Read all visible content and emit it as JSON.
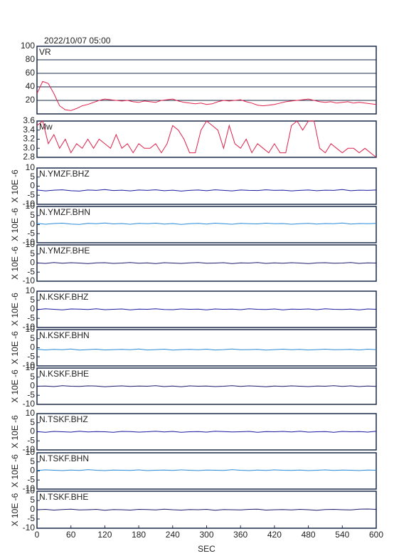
{
  "chart_data": [
    {
      "type": "line",
      "title": "2022/10/07 05:00",
      "label": "VR",
      "color": "#e0204a",
      "grid": true,
      "xlim": [
        0,
        600
      ],
      "ylim": [
        0,
        100
      ],
      "yticks": [
        20,
        40,
        60,
        80,
        100
      ],
      "x": [
        0,
        10,
        20,
        30,
        40,
        50,
        60,
        70,
        80,
        90,
        100,
        110,
        120,
        130,
        140,
        150,
        160,
        170,
        180,
        190,
        200,
        210,
        220,
        230,
        240,
        250,
        260,
        270,
        280,
        290,
        300,
        310,
        320,
        330,
        340,
        350,
        360,
        370,
        380,
        390,
        400,
        410,
        420,
        430,
        440,
        450,
        460,
        470,
        480,
        490,
        500,
        510,
        520,
        530,
        540,
        550,
        560,
        570,
        580,
        590,
        600
      ],
      "values": [
        30,
        48,
        45,
        30,
        12,
        6,
        5,
        8,
        12,
        14,
        17,
        20,
        22,
        21,
        20,
        19,
        20,
        18,
        17,
        19,
        18,
        17,
        20,
        21,
        22,
        19,
        17,
        16,
        15,
        16,
        14,
        15,
        18,
        20,
        19,
        20,
        21,
        18,
        16,
        13,
        12,
        13,
        14,
        16,
        18,
        19,
        20,
        21,
        22,
        20,
        18,
        17,
        18,
        16,
        17,
        18,
        16,
        17,
        16,
        15,
        14
      ]
    },
    {
      "type": "line",
      "label": "Mw",
      "color": "#e0204a",
      "grid": false,
      "xlim": [
        0,
        600
      ],
      "ylim": [
        2.8,
        3.6
      ],
      "yticks": [
        2.8,
        {
          "value": 3,
          "label": "3.0"
        },
        3.2,
        3.4,
        3.6
      ],
      "x": [
        0,
        10,
        20,
        30,
        40,
        50,
        60,
        70,
        80,
        90,
        100,
        110,
        120,
        130,
        140,
        150,
        160,
        170,
        180,
        190,
        200,
        210,
        220,
        230,
        240,
        250,
        260,
        270,
        280,
        290,
        300,
        310,
        320,
        330,
        340,
        350,
        360,
        370,
        380,
        390,
        400,
        410,
        420,
        430,
        440,
        450,
        460,
        470,
        480,
        490,
        500,
        510,
        520,
        530,
        540,
        550,
        560,
        570,
        580,
        590,
        600
      ],
      "values": [
        3.5,
        3.6,
        3.1,
        3.3,
        3.0,
        3.2,
        2.9,
        3.1,
        3.0,
        3.2,
        3.0,
        3.2,
        3.1,
        3.0,
        3.3,
        3.0,
        3.1,
        2.9,
        3.1,
        3.0,
        3.0,
        3.1,
        2.9,
        3.1,
        3.5,
        3.4,
        3.2,
        2.9,
        2.9,
        3.4,
        3.6,
        3.5,
        3.4,
        3.0,
        3.5,
        3.1,
        3.0,
        3.2,
        2.9,
        3.1,
        3.0,
        2.9,
        3.1,
        2.9,
        2.9,
        3.5,
        3.6,
        3.4,
        3.6,
        3.6,
        3.0,
        2.9,
        3.1,
        3.0,
        2.9,
        3.0,
        3.0,
        2.9,
        3.0,
        2.9,
        2.8
      ]
    },
    {
      "type": "line",
      "label": "N.YMZF.BHZ",
      "ylabel": "X 10E -6",
      "color": "#1a1aa0",
      "xlim": [
        0,
        600
      ],
      "ylim": [
        -10,
        10
      ],
      "yticks": [
        -10,
        -5,
        0,
        5,
        10
      ],
      "x": [
        0,
        15,
        30,
        45,
        60,
        75,
        90,
        105,
        120,
        135,
        150,
        165,
        180,
        195,
        210,
        225,
        240,
        255,
        270,
        285,
        300,
        315,
        330,
        345,
        360,
        375,
        390,
        405,
        420,
        435,
        450,
        465,
        480,
        495,
        510,
        525,
        540,
        555,
        570,
        585,
        600
      ],
      "values": [
        -2.1,
        -2.6,
        -2.2,
        -2.0,
        -2.5,
        -2.7,
        -2.1,
        -2.3,
        -1.9,
        -2.4,
        -2.2,
        -2.6,
        -2.1,
        -2.3,
        -2.0,
        -2.5,
        -2.2,
        -2.7,
        -2.3,
        -2.1,
        -2.5,
        -2.0,
        -2.3,
        -2.6,
        -2.1,
        -2.3,
        -2.4,
        -2.0,
        -2.3,
        -2.2,
        -2.6,
        -2.3,
        -2.1,
        -2.5,
        -2.2,
        -2.3,
        -1.9,
        -2.5,
        -2.2,
        -2.3,
        -2.1
      ]
    },
    {
      "type": "line",
      "label": "N.YMZF.BHN",
      "ylabel": "X 10E -6",
      "color": "#2a8ad8",
      "xlim": [
        0,
        600
      ],
      "ylim": [
        -10,
        10
      ],
      "yticks": [
        -10,
        -5,
        0,
        5,
        10
      ],
      "x": [
        0,
        15,
        30,
        45,
        60,
        75,
        90,
        105,
        120,
        135,
        150,
        165,
        180,
        195,
        210,
        225,
        240,
        255,
        270,
        285,
        300,
        315,
        330,
        345,
        360,
        375,
        390,
        405,
        420,
        435,
        450,
        465,
        480,
        495,
        510,
        525,
        540,
        555,
        570,
        585,
        600
      ],
      "values": [
        0.7,
        0.2,
        0.6,
        0.8,
        0.3,
        0.1,
        0.7,
        0.5,
        0.9,
        0.4,
        0.6,
        0.2,
        0.7,
        0.5,
        0.8,
        0.3,
        0.6,
        0.1,
        0.5,
        0.7,
        0.3,
        0.8,
        0.5,
        0.2,
        0.7,
        0.5,
        0.4,
        0.8,
        0.5,
        0.6,
        0.2,
        0.5,
        0.7,
        0.3,
        0.6,
        0.5,
        0.9,
        0.3,
        0.6,
        0.5,
        0.7
      ]
    },
    {
      "type": "line",
      "label": "N.YMZF.BHE",
      "ylabel": "X 10E -6",
      "color": "#1a1a6a",
      "xlim": [
        0,
        600
      ],
      "ylim": [
        -10,
        10
      ],
      "yticks": [
        -10,
        -5,
        0,
        5,
        10
      ],
      "x": [
        0,
        15,
        30,
        45,
        60,
        75,
        90,
        105,
        120,
        135,
        150,
        165,
        180,
        195,
        210,
        225,
        240,
        255,
        270,
        285,
        300,
        315,
        330,
        345,
        360,
        375,
        390,
        405,
        420,
        435,
        450,
        465,
        480,
        495,
        510,
        525,
        540,
        555,
        570,
        585,
        600
      ],
      "values": [
        0.1,
        -0.2,
        0.3,
        -0.1,
        0.2,
        0.0,
        -0.3,
        0.1,
        0.2,
        -0.2,
        0.0,
        0.3,
        -0.1,
        0.1,
        -0.3,
        0.2,
        0.0,
        -0.2,
        0.1,
        0.3,
        -0.1,
        0.0,
        0.2,
        -0.3,
        0.1,
        0.0,
        0.3,
        -0.2,
        0.1,
        -0.1,
        0.2,
        0.0,
        -0.3,
        0.1,
        0.2,
        -0.1,
        0.0,
        0.3,
        -0.2,
        0.1,
        0.0
      ]
    },
    {
      "type": "line",
      "label": "N.KSKF.BHZ",
      "ylabel": "X 10E -6",
      "color": "#1a1aa0",
      "xlim": [
        0,
        600
      ],
      "ylim": [
        -10,
        10
      ],
      "yticks": [
        -10,
        -5,
        0,
        5,
        10
      ],
      "x": [
        0,
        15,
        30,
        45,
        60,
        75,
        90,
        105,
        120,
        135,
        150,
        165,
        180,
        195,
        210,
        225,
        240,
        255,
        270,
        285,
        300,
        315,
        330,
        345,
        360,
        375,
        390,
        405,
        420,
        435,
        450,
        465,
        480,
        495,
        510,
        525,
        540,
        555,
        570,
        585,
        600
      ],
      "values": [
        -0.2,
        0.3,
        0.0,
        -0.3,
        0.2,
        0.1,
        -0.1,
        0.3,
        -0.2,
        0.0,
        0.2,
        -0.3,
        0.1,
        0.0,
        0.3,
        -0.1,
        -0.2,
        0.2,
        0.0,
        0.1,
        -0.3,
        0.2,
        0.0,
        0.1,
        -0.2,
        0.3,
        0.0,
        -0.1,
        0.2,
        -0.3,
        0.1,
        0.0,
        0.2,
        -0.2,
        0.3,
        0.0,
        -0.1,
        0.1,
        -0.3,
        0.2,
        0.0
      ]
    },
    {
      "type": "line",
      "label": "N.KSKF.BHN",
      "ylabel": "X 10E -6",
      "color": "#2a8ad8",
      "xlim": [
        0,
        600
      ],
      "ylim": [
        -10,
        10
      ],
      "yticks": [
        -10,
        -5,
        0,
        5,
        10
      ],
      "x": [
        0,
        15,
        30,
        45,
        60,
        75,
        90,
        105,
        120,
        135,
        150,
        165,
        180,
        195,
        210,
        225,
        240,
        255,
        270,
        285,
        300,
        315,
        330,
        345,
        360,
        375,
        390,
        405,
        420,
        435,
        450,
        465,
        480,
        495,
        510,
        525,
        540,
        555,
        570,
        585,
        600
      ],
      "values": [
        -0.8,
        -1.2,
        -0.9,
        -1.1,
        -0.7,
        -1.3,
        -1.0,
        -0.8,
        -1.2,
        -1.0,
        -0.9,
        -1.1,
        -0.7,
        -1.2,
        -1.0,
        -0.8,
        -1.3,
        -1.0,
        -0.9,
        -1.1,
        -0.8,
        -1.2,
        -1.0,
        -0.7,
        -1.1,
        -1.0,
        -0.9,
        -1.3,
        -1.0,
        -0.8,
        -1.1,
        -0.9,
        -1.2,
        -1.0,
        -0.8,
        -1.1,
        -1.0,
        -0.9,
        -1.2,
        -0.8,
        -1.0
      ]
    },
    {
      "type": "line",
      "label": "N.KSKF.BHE",
      "ylabel": "X 10E -6",
      "color": "#1a1a6a",
      "xlim": [
        0,
        600
      ],
      "ylim": [
        -10,
        10
      ],
      "yticks": [
        -10,
        -5,
        0,
        5,
        10
      ],
      "x": [
        0,
        15,
        30,
        45,
        60,
        75,
        90,
        105,
        120,
        135,
        150,
        165,
        180,
        195,
        210,
        225,
        240,
        255,
        270,
        285,
        300,
        315,
        330,
        345,
        360,
        375,
        390,
        405,
        420,
        435,
        450,
        465,
        480,
        495,
        510,
        525,
        540,
        555,
        570,
        585,
        600
      ],
      "values": [
        0.0,
        0.1,
        -0.2,
        0.3,
        0.0,
        -0.1,
        0.2,
        0.1,
        -0.3,
        0.0,
        0.2,
        -0.1,
        0.1,
        0.0,
        0.3,
        -0.2,
        0.1,
        -0.3,
        0.2,
        0.0,
        0.1,
        -0.2,
        0.0,
        0.3,
        -0.1,
        0.2,
        0.0,
        -0.3,
        0.1,
        -0.1,
        0.2,
        0.0,
        -0.2,
        0.1,
        0.0,
        0.3,
        -0.1,
        0.2,
        -0.2,
        0.1,
        -0.1
      ]
    },
    {
      "type": "line",
      "label": "N.TSKF.BHZ",
      "ylabel": "X 10E -6",
      "color": "#1a1aa0",
      "xlim": [
        0,
        600
      ],
      "ylim": [
        -10,
        10
      ],
      "yticks": [
        -10,
        -5,
        0,
        5,
        10
      ],
      "x": [
        0,
        15,
        30,
        45,
        60,
        75,
        90,
        105,
        120,
        135,
        150,
        165,
        180,
        195,
        210,
        225,
        240,
        255,
        270,
        285,
        300,
        315,
        330,
        345,
        360,
        375,
        390,
        405,
        420,
        435,
        450,
        465,
        480,
        495,
        510,
        525,
        540,
        555,
        570,
        585,
        600
      ],
      "values": [
        0.1,
        -0.3,
        0.2,
        0.0,
        -0.2,
        0.3,
        -0.1,
        0.1,
        0.0,
        -0.3,
        0.2,
        0.1,
        -0.2,
        0.0,
        0.3,
        -0.1,
        0.2,
        -0.3,
        0.0,
        0.1,
        -0.2,
        0.3,
        0.1,
        -0.1,
        0.0,
        0.2,
        -0.3,
        0.1,
        0.0,
        0.2,
        -0.1,
        0.3,
        -0.2,
        0.0,
        0.1,
        -0.3,
        0.2,
        0.0,
        0.1,
        -0.2,
        0.3
      ]
    },
    {
      "type": "line",
      "label": "N.TSKF.BHN",
      "ylabel": "X 10E -6",
      "color": "#2a8ad8",
      "xlim": [
        0,
        600
      ],
      "ylim": [
        -10,
        10
      ],
      "yticks": [
        -10,
        -5,
        0,
        5,
        10
      ],
      "x": [
        0,
        15,
        30,
        45,
        60,
        75,
        90,
        105,
        120,
        135,
        150,
        165,
        180,
        195,
        210,
        225,
        240,
        255,
        270,
        285,
        300,
        315,
        330,
        345,
        360,
        375,
        390,
        405,
        420,
        435,
        450,
        465,
        480,
        495,
        510,
        525,
        540,
        555,
        570,
        585,
        600
      ],
      "values": [
        0.3,
        0.6,
        0.4,
        0.2,
        0.5,
        0.3,
        0.7,
        0.4,
        0.2,
        0.5,
        0.4,
        0.3,
        0.6,
        0.2,
        0.4,
        0.5,
        0.3,
        0.6,
        0.4,
        0.2,
        0.5,
        0.4,
        0.3,
        0.7,
        0.4,
        0.2,
        0.5,
        0.3,
        0.6,
        0.4,
        0.3,
        0.5,
        0.2,
        0.4,
        0.6,
        0.3,
        0.5,
        0.4,
        0.2,
        0.5,
        0.4
      ]
    },
    {
      "type": "line",
      "label": "N.TSKF.BHE",
      "ylabel": "X 10E -6",
      "color": "#1a1a6a",
      "xlim": [
        0,
        600
      ],
      "ylim": [
        -10,
        10
      ],
      "yticks": [
        -10,
        -5,
        0,
        5,
        10
      ],
      "xticks": [
        0,
        60,
        120,
        180,
        240,
        300,
        360,
        420,
        480,
        540,
        600
      ],
      "xlabel": "SEC",
      "x": [
        0,
        15,
        30,
        45,
        60,
        75,
        90,
        105,
        120,
        135,
        150,
        165,
        180,
        195,
        210,
        225,
        240,
        255,
        270,
        285,
        300,
        315,
        330,
        345,
        360,
        375,
        390,
        405,
        420,
        435,
        450,
        465,
        480,
        495,
        510,
        525,
        540,
        555,
        570,
        585,
        600
      ],
      "values": [
        0.0,
        0.2,
        -0.2,
        0.1,
        0.3,
        -0.1,
        0.0,
        0.2,
        -0.3,
        0.1,
        0.0,
        -0.2,
        0.2,
        0.1,
        -0.1,
        0.3,
        0.0,
        -0.2,
        0.1,
        0.0,
        0.2,
        -0.3,
        0.1,
        0.0,
        -0.1,
        0.2,
        0.3,
        -0.2,
        0.0,
        0.1,
        -0.1,
        0.2,
        0.0,
        -0.3,
        0.1,
        0.2,
        0.0,
        -0.1,
        0.3,
        0.4,
        0.2
      ]
    }
  ]
}
